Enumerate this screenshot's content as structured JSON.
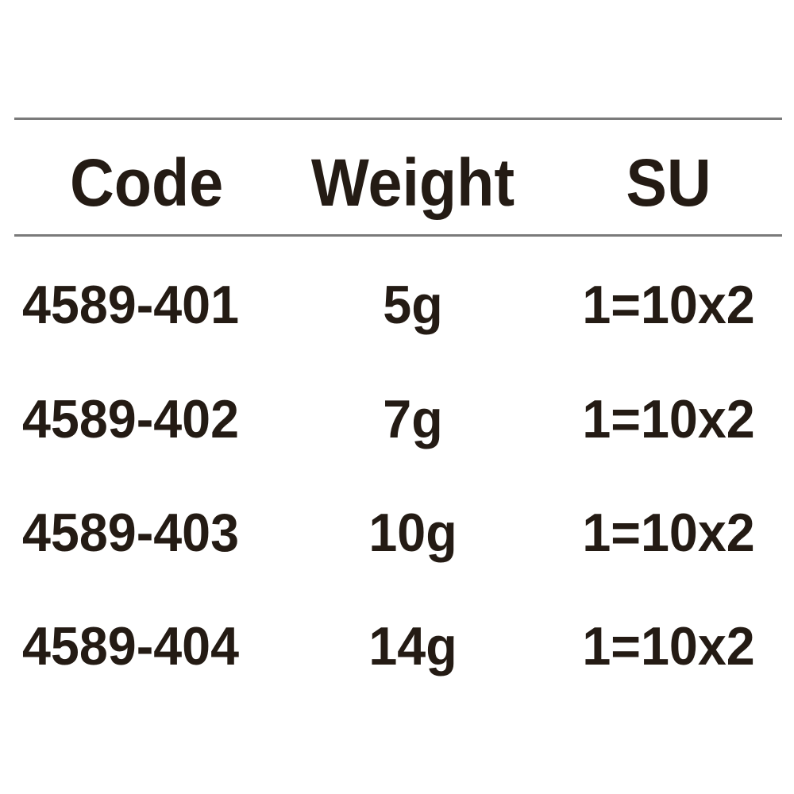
{
  "table": {
    "headers": [
      "Code",
      "Weight",
      "SU"
    ],
    "rows": [
      [
        "4589-401",
        "5g",
        "1=10x2"
      ],
      [
        "4589-402",
        "7g",
        "1=10x2"
      ],
      [
        "4589-403",
        "10g",
        "1=10x2"
      ],
      [
        "4589-404",
        "14g",
        "1=10x2"
      ]
    ]
  },
  "colors": {
    "text": "#241b14",
    "rule": "#7a7a7a"
  }
}
